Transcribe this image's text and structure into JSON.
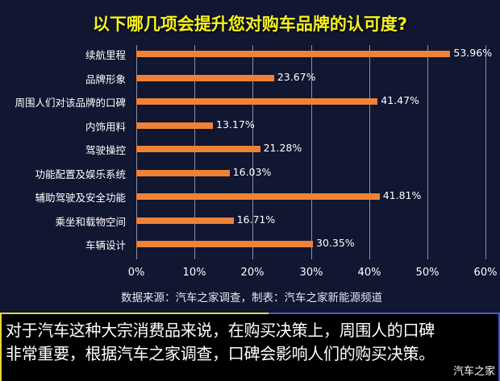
{
  "chart_data": {
    "type": "bar",
    "orientation": "horizontal",
    "title": "以下哪几项会提升您对购车品牌的认可度?",
    "categories": [
      "续航里程",
      "品牌形象",
      "周围人们对该品牌的口碑",
      "内饰用料",
      "驾驶操控",
      "功能配置及娱乐系统",
      "辅助驾驶及安全功能",
      "乘坐和载物空间",
      "车辆设计"
    ],
    "values": [
      53.96,
      23.67,
      41.47,
      13.17,
      21.28,
      16.03,
      41.81,
      16.71,
      30.35
    ],
    "value_labels": [
      "53.96%",
      "23.67%",
      "41.47%",
      "13.17%",
      "21.28%",
      "16.03%",
      "41.81%",
      "16.71%",
      "30.35%"
    ],
    "xlabel": "",
    "ylabel": "",
    "xlim": [
      0,
      60
    ],
    "x_ticks": [
      "0%",
      "10%",
      "20%",
      "30%",
      "40%",
      "50%",
      "60%"
    ],
    "grid": true,
    "legend": null,
    "bar_color": "#ef8236"
  },
  "source": "数据来源：汽车之家调查，制表：汽车之家新能源频道",
  "note": {
    "line1": "对于汽车这种大宗消费品来说，在购买决策上，周围人的口碑",
    "line2": "非常重要，根据汽车之家调查，口碑会影响人们的购买决策。"
  },
  "watermark": "汽车之家",
  "colors": {
    "background": "#111631",
    "title": "#f7f21d",
    "bar": "#ef8236",
    "note_background": "#000000",
    "border_yellow": "#e3d63a",
    "border_blue": "#4f56c7"
  }
}
